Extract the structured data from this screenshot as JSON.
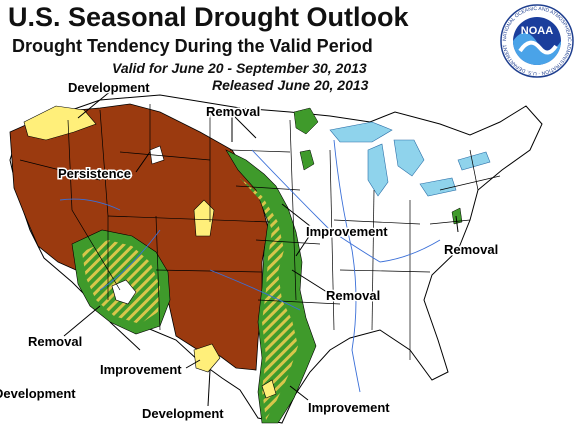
{
  "header": {
    "title": "U.S. Seasonal Drought Outlook",
    "subtitle": "Drought Tendency During the Valid Period",
    "valid_period": "Valid for June 20 - September 30, 2013",
    "released": "Released June 20, 2013"
  },
  "logo": {
    "text": "NOAA",
    "ring_text": "NATIONAL OCEANIC AND ATMOSPHERIC ADMINISTRATION · U.S. DEPARTMENT OF COMMERCE"
  },
  "map_labels": {
    "development_nw": "Development",
    "removal_north": "Removal",
    "persistence": "Persistence",
    "improvement_plains": "Improvement",
    "removal_east": "Removal",
    "removal_plains": "Removal",
    "removal_southwest": "Removal",
    "improvement_southwest": "Improvement",
    "development_west": "Development",
    "development_south": "Development",
    "improvement_texas": "Improvement"
  },
  "colors": {
    "persistence": "#9b3a0f",
    "improvement": "#3f9a2b",
    "development": "#ffef7a",
    "hatch": "#d8c64a",
    "water": "#8fd3ec",
    "state_lines": "#000000",
    "rivers": "#3a6fd8"
  }
}
